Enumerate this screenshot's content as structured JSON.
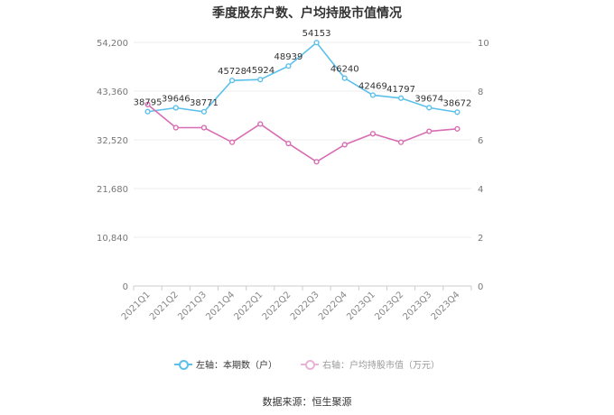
{
  "chart_data": {
    "type": "line",
    "title": "季度股东户数、户均持股市值情况",
    "categories": [
      "2021Q1",
      "2021Q2",
      "2021Q3",
      "2021Q4",
      "2022Q1",
      "2022Q2",
      "2022Q3",
      "2022Q4",
      "2023Q1",
      "2023Q2",
      "2023Q3",
      "2023Q4"
    ],
    "y_left": {
      "ticks": [
        "0",
        "10,840",
        "21,680",
        "32,520",
        "43,360",
        "54,200"
      ],
      "range": [
        0,
        54200
      ]
    },
    "y_right": {
      "ticks": [
        "0",
        "2",
        "4",
        "6",
        "8",
        "10"
      ],
      "range": [
        0,
        10
      ]
    },
    "series": [
      {
        "name": "左轴：本期数（户）",
        "axis": "left",
        "color": "#5bc0eb",
        "values": [
          38795,
          39646,
          38771,
          45728,
          45924,
          48939,
          54153,
          46240,
          42469,
          41797,
          39674,
          38672
        ],
        "labels": [
          "38795",
          "39646",
          "38771",
          "45728",
          "45924",
          "48939",
          "54153",
          "46240",
          "42469",
          "41797",
          "39674",
          "38672"
        ]
      },
      {
        "name": "右轴：户均持股市值（万元）",
        "axis": "right",
        "color": "#d86db3",
        "values": [
          7.45,
          6.5,
          6.5,
          5.9,
          6.65,
          5.85,
          5.1,
          5.8,
          6.25,
          5.9,
          6.35,
          6.45
        ]
      }
    ],
    "grid": true,
    "legend_position": "bottom"
  },
  "source": "数据来源：恒生聚源"
}
